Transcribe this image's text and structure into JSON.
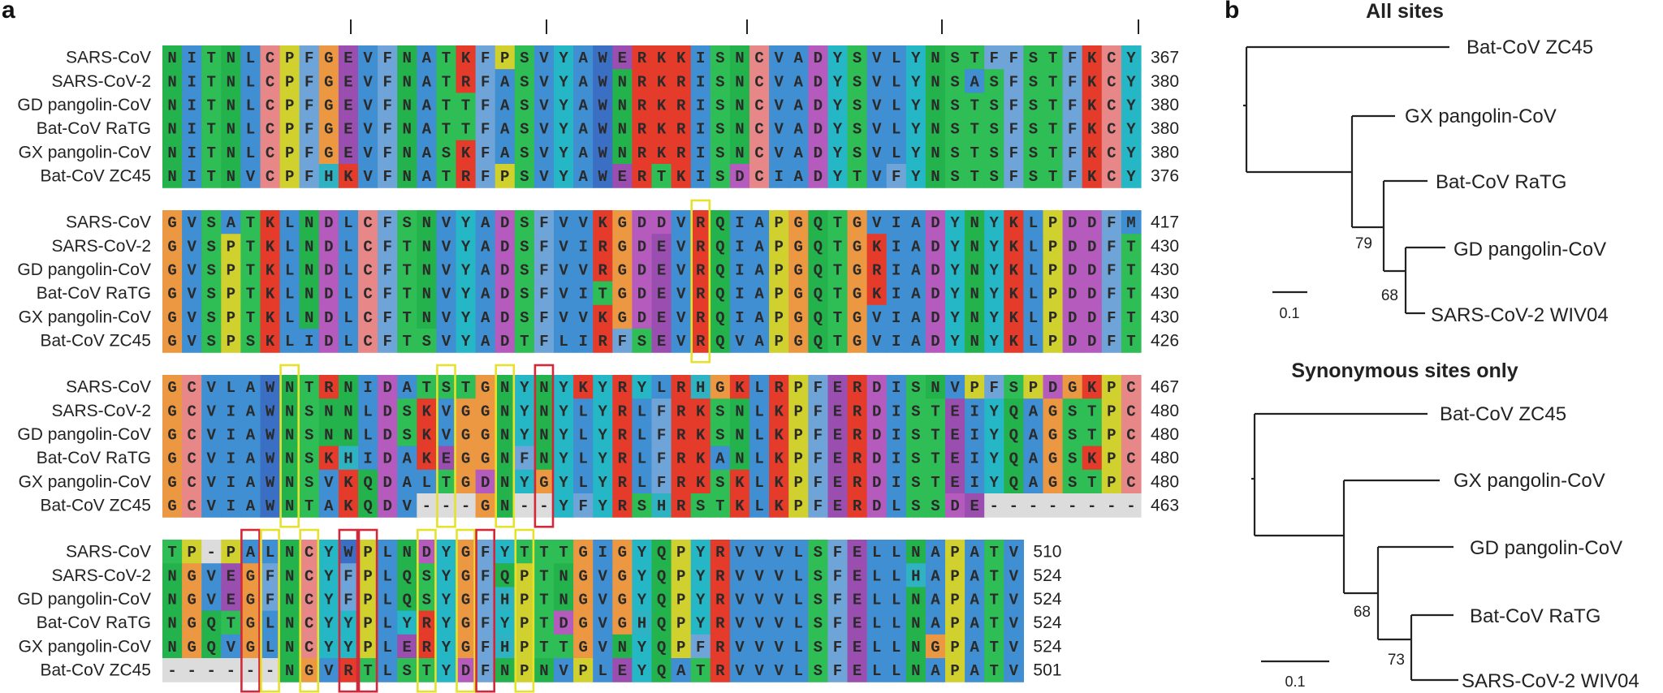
{
  "panels": {
    "a": "a",
    "b": "b"
  },
  "alignment": {
    "species": [
      "SARS-CoV",
      "SARS-CoV-2",
      "GD pangolin-CoV",
      "Bat-CoV RaTG",
      "GX pangolin-CoV",
      "Bat-CoV ZC45"
    ],
    "blocks": [
      {
        "rows": [
          "NITNLCPFGEVFNATKFPSVYAWERKKISNCVADYSVLYNSTFFSTFKCY",
          "NITNLCPFGEVFNATRFASVYAWNRKRISNCVADYSVLYNSASFSTFKCY",
          "NITNLCPFGEVFNATTFASVYAWNRKRISNCVADYSVLYNSTSFSTFKCY",
          "NITNLCPFGEVFNATTFASVYAWNRKRISNCVADYSVLYNSTSFSTFKCY",
          "NITNLCPFGEVFNASKFASVYAWNRKRISNCVADYSVLYNSTSFSTFKCY",
          "NITNVCPFHKVFNATRFPSVYAWERTKISDCIADYTVFYNSTSFSTFKCY"
        ],
        "ends": [
          "367",
          "380",
          "380",
          "380",
          "380",
          "376"
        ]
      },
      {
        "rows": [
          "GVSATKLNDLCFSNVYADSFVVKGDDVRQIAPGQTGVIADYNYKLPDDFM",
          "GVSPTKLNDLCFTNVYADSFVIRGDEVRQIAPGQTGKIADYNYKLPDDFT",
          "GVSPTKLNDLCFTNVYADSFVVRGDEVRQIAPGQTGRIADYNYKLPDDFT",
          "GVSPTKLNDLCFTNVYADSFVITGDEVRQIAPGQTGKIADYNYKLPDDFT",
          "GVSPTKLNDLCFTNVYADSFVVKGDEVRQIAPGQTGVIADYNYKLPDDFT",
          "GVSPSKLIDLCFTSVYADTFLIRFSEVRQVAPGQTGVIADYNYKLPDDFT"
        ],
        "ends": [
          "417",
          "430",
          "430",
          "430",
          "430",
          "426"
        ]
      },
      {
        "rows": [
          "GCVLAWNTRNIDATSTGNYNYKYRYLRHGKLRPFERDISNVPFSPDGKPC",
          "GCVIAWNSNNLDSKVGGNYNYLYRLFRKSNLKPFERDISTEIYQAGSTPC",
          "GCVIAWNSNNLDSKVGGNYNYLYRLFRKSNLKPFERDISTEIYQAGSTPC",
          "GCVIAWNSKHIDAKEGGNFNYLYRLFRKANLKPFERDISTEIYQAGSKPC",
          "GCVIAWNSVKQDALTGDNYGYLYRLFRKSKLKPFERDISTEIYQAGSTPC",
          "GCVIAWNTAKQDV---GN--YFYRSHRSTKLKPFERDLSSDE--------"
        ],
        "ends": [
          "467",
          "480",
          "480",
          "480",
          "480",
          "463"
        ]
      },
      {
        "rows": [
          "TP-PALNCYWPLNDYGFYTTTGIGYQPYRVVVLSFELLNAPATV",
          "NGVEGFNCYFPLQSYGFQPTNGVGYQPYRVVVLSFELLHAPATV",
          "NGVEGFNCYFPLQSYGFHPTNGVGYQPYRVVVLSFELLNAPATV",
          "NGQTGLNCYYPLYRYGFYPTDGVGHQPYRVVVLSFELLNAPATV",
          "NGQVGLNCYYPLERYGFHPTTGVNYQPFRVVVLSFELLNGPATV",
          "------NGVRTLSTYDFNPNVPLEYQATRVVVLSFELLNAPATV"
        ],
        "ends": [
          "510",
          "524",
          "524",
          "524",
          "524",
          "501"
        ]
      }
    ]
  },
  "trees": {
    "all_sites": {
      "title": "All sites",
      "leaves": [
        "Bat-CoV ZC45",
        "GX pangolin-CoV",
        "Bat-CoV RaTG",
        "GD pangolin-CoV",
        "SARS-CoV-2 WIV04"
      ],
      "bootstraps": [
        "79",
        "68"
      ],
      "scale": "0.1"
    },
    "synonymous": {
      "title": "Synonymous sites only",
      "leaves": [
        "Bat-CoV ZC45",
        "GX pangolin-CoV",
        "GD pangolin-CoV",
        "Bat-CoV RaTG",
        "SARS-CoV-2 WIV04"
      ],
      "bootstraps": [
        "68",
        "73"
      ],
      "scale": "0.1"
    }
  },
  "colors": {
    "A": "#3f8fd2",
    "I": "#3f8fd2",
    "L": "#3f8fd2",
    "M": "#3f8fd2",
    "V": "#3f8fd2",
    "F": "#6fa4d8",
    "W": "#3a6fc4",
    "C": "#e78787",
    "P": "#d0d02e",
    "G": "#ec9742",
    "N": "#23b24c",
    "Q": "#23b24c",
    "S": "#2fbd55",
    "T": "#2fbd55",
    "D": "#b45bbd",
    "E": "#9a4fb0",
    "K": "#e43b2b",
    "R": "#e43b2b",
    "H": "#2fb2c2",
    "Y": "#25b7c6",
    "gap": "#dcdcdc",
    "box_yellow": "#e6e22c",
    "box_red": "#d3283a"
  }
}
